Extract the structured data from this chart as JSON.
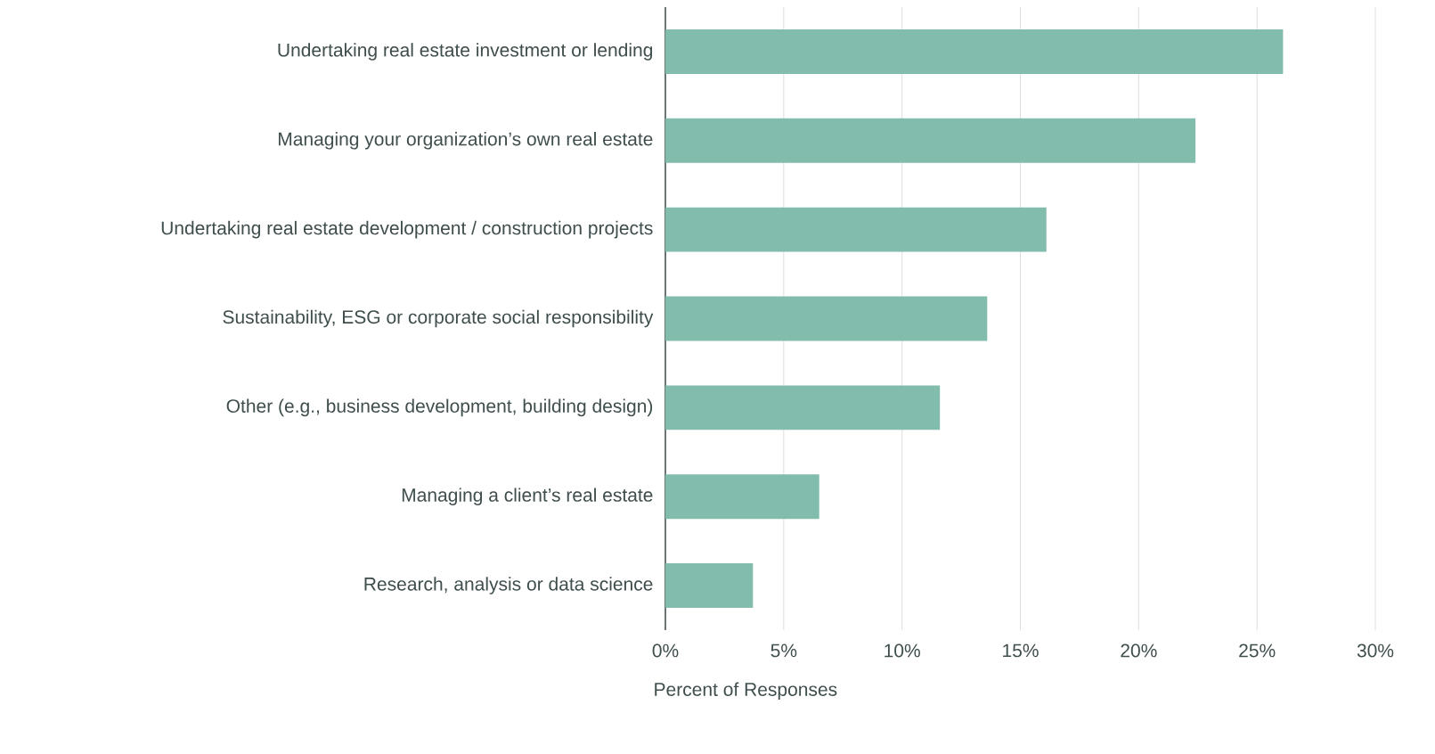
{
  "chart_data": {
    "type": "bar",
    "orientation": "horizontal",
    "categories": [
      "Undertaking real estate investment or lending",
      "Managing your organization’s own real estate",
      "Undertaking real estate development / construction projects",
      "Sustainability, ESG or corporate social responsibility",
      "Other (e.g., business development, building design)",
      "Managing a client’s real estate",
      "Research, analysis or data science"
    ],
    "values": [
      26.1,
      22.4,
      16.1,
      13.6,
      11.6,
      6.5,
      3.7
    ],
    "color": "#82bcad",
    "xlabel": "Percent of Responses",
    "xlim": [
      0,
      30
    ],
    "xticks": [
      {
        "value": 0,
        "label": "0%"
      },
      {
        "value": 5,
        "label": "5%"
      },
      {
        "value": 10,
        "label": "10%"
      },
      {
        "value": 15,
        "label": "15%"
      },
      {
        "value": 20,
        "label": "20%"
      },
      {
        "value": 25,
        "label": "25%"
      },
      {
        "value": 30,
        "label": "30%"
      }
    ],
    "grid": "x"
  }
}
